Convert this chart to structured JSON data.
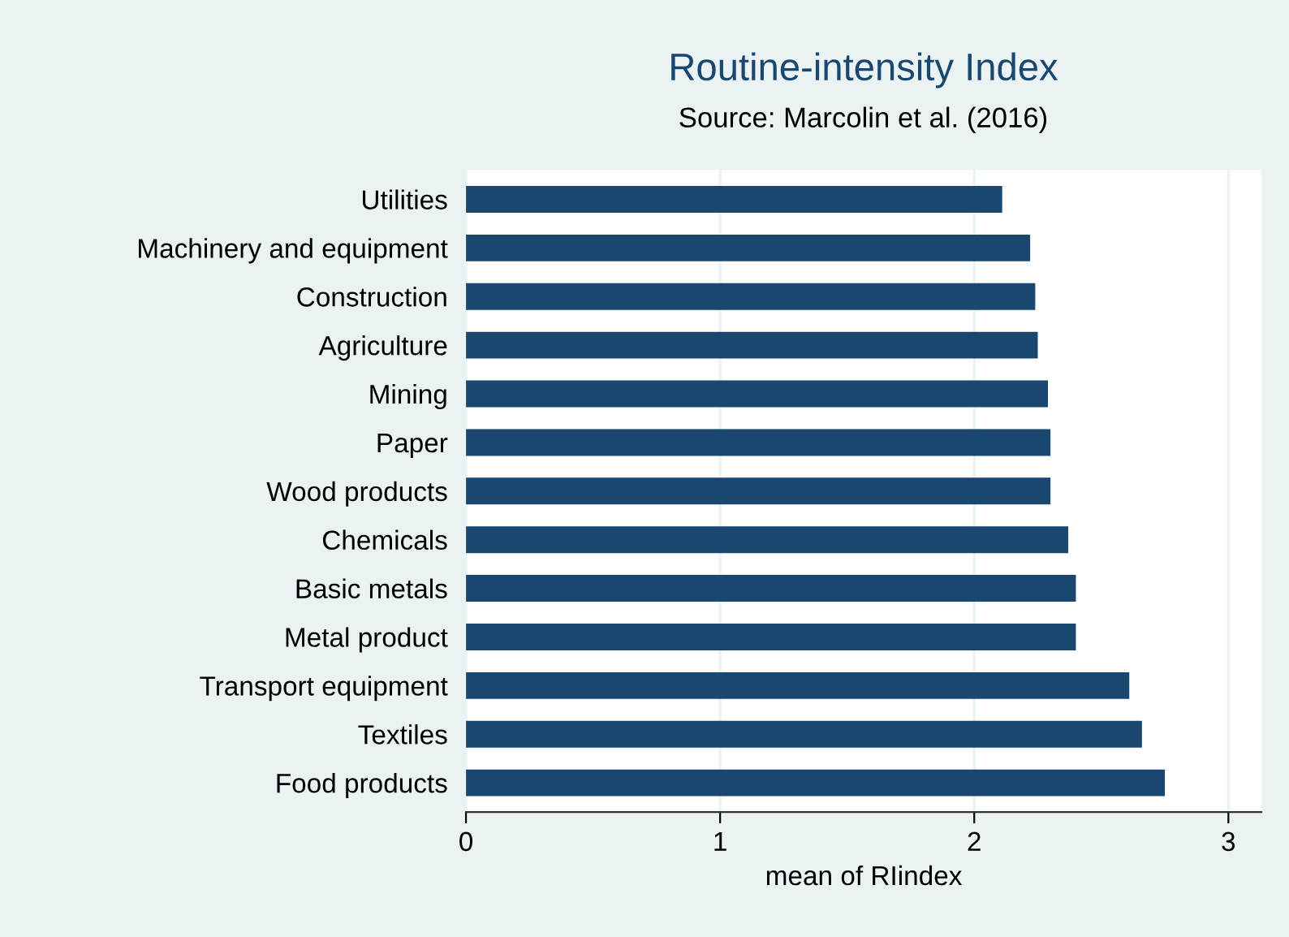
{
  "chart_data": {
    "type": "bar",
    "orientation": "horizontal",
    "title": "Routine-intensity Index",
    "subtitle": "Source: Marcolin et al. (2016)",
    "xlabel": "mean of RIindex",
    "categories": [
      "Utilities",
      "Machinery and equipment",
      "Construction",
      "Agriculture",
      "Mining",
      "Paper",
      "Wood products",
      "Chemicals",
      "Basic metals",
      "Metal product",
      "Transport equipment",
      "Textiles",
      "Food products"
    ],
    "values": [
      2.11,
      2.22,
      2.24,
      2.25,
      2.29,
      2.3,
      2.3,
      2.37,
      2.4,
      2.4,
      2.61,
      2.66,
      2.75
    ],
    "color": "#1a476f",
    "xlim": [
      0,
      3.13
    ],
    "xticks": [
      0,
      1,
      2,
      3
    ],
    "grid": "x",
    "legend": false
  }
}
